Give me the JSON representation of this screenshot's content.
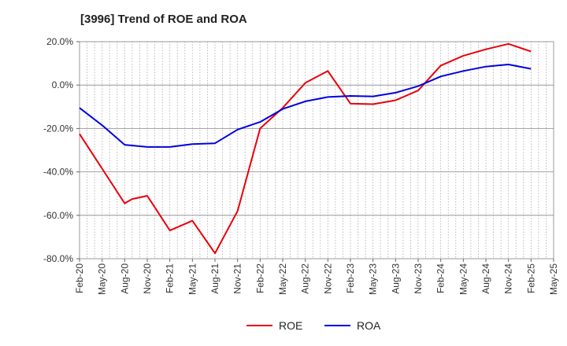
{
  "chart_data": {
    "type": "line",
    "title": "[3996]  Trend of ROE and ROA",
    "xlabel": "",
    "ylabel": "",
    "categories": [
      "Feb-20",
      "Mar-20",
      "Apr-20",
      "May-20",
      "Jun-20",
      "Jul-20",
      "Aug-20",
      "Sep-20",
      "Oct-20",
      "Nov-20",
      "Dec-20",
      "Jan-21",
      "Feb-21",
      "Mar-21",
      "Apr-21",
      "May-21",
      "Jun-21",
      "Jul-21",
      "Aug-21",
      "Sep-21",
      "Oct-21",
      "Nov-21",
      "Dec-21",
      "Jan-22",
      "Feb-22",
      "Mar-22",
      "Apr-22",
      "May-22",
      "Jun-22",
      "Jul-22",
      "Aug-22",
      "Sep-22",
      "Oct-22",
      "Nov-22",
      "Dec-22",
      "Jan-23",
      "Feb-23",
      "Mar-23",
      "Apr-23",
      "May-23",
      "Jun-23",
      "Jul-23",
      "Aug-23",
      "Sep-23",
      "Oct-23",
      "Nov-23",
      "Dec-23",
      "Jan-24",
      "Feb-24",
      "Mar-24",
      "Apr-24",
      "May-24",
      "Jun-24",
      "Jul-24",
      "Aug-24",
      "Sep-24",
      "Oct-24",
      "Nov-24",
      "Dec-24",
      "Jan-25",
      "Feb-25",
      "Mar-25",
      "Apr-25",
      "May-25"
    ],
    "x_tick_labels": [
      "Feb-20",
      "May-20",
      "Aug-20",
      "Nov-20",
      "Feb-21",
      "May-21",
      "Aug-21",
      "Nov-21",
      "Feb-22",
      "May-22",
      "Aug-22",
      "Nov-22",
      "Feb-23",
      "May-23",
      "Aug-23",
      "Nov-23",
      "Feb-24",
      "May-24",
      "Aug-24",
      "Nov-24",
      "Feb-25",
      "May-25"
    ],
    "y_tick_labels": [
      "20.0%",
      "0.0%",
      "-20.0%",
      "-40.0%",
      "-60.0%",
      "-80.0%"
    ],
    "ylim": [
      -80,
      20
    ],
    "grid": true,
    "legend_position": "bottom",
    "series": [
      {
        "name": "ROE",
        "color": "#e8000b",
        "points": [
          {
            "x": "Feb-20",
            "y": -22.5
          },
          {
            "x": "May-20",
            "y": -38.5
          },
          {
            "x": "Aug-20",
            "y": -54.5
          },
          {
            "x": "Sep-20",
            "y": -52.5
          },
          {
            "x": "Nov-20",
            "y": -51.0
          },
          {
            "x": "Feb-21",
            "y": -67.0
          },
          {
            "x": "May-21",
            "y": -62.5
          },
          {
            "x": "Aug-21",
            "y": -77.5
          },
          {
            "x": "Nov-21",
            "y": -58.0
          },
          {
            "x": "Feb-22",
            "y": -20.0
          },
          {
            "x": "May-22",
            "y": -10.5
          },
          {
            "x": "Aug-22",
            "y": 1.0
          },
          {
            "x": "Nov-22",
            "y": 6.5
          },
          {
            "x": "Feb-23",
            "y": -8.5
          },
          {
            "x": "May-23",
            "y": -8.8
          },
          {
            "x": "Aug-23",
            "y": -7.0
          },
          {
            "x": "Nov-23",
            "y": -2.5
          },
          {
            "x": "Feb-24",
            "y": 9.0
          },
          {
            "x": "May-24",
            "y": 13.5
          },
          {
            "x": "Aug-24",
            "y": 16.5
          },
          {
            "x": "Nov-24",
            "y": 19.0
          },
          {
            "x": "Feb-25",
            "y": 15.5
          }
        ]
      },
      {
        "name": "ROA",
        "color": "#0000e0",
        "points": [
          {
            "x": "Feb-20",
            "y": -10.5
          },
          {
            "x": "May-20",
            "y": -18.5
          },
          {
            "x": "Aug-20",
            "y": -27.5
          },
          {
            "x": "Nov-20",
            "y": -28.5
          },
          {
            "x": "Feb-21",
            "y": -28.5
          },
          {
            "x": "May-21",
            "y": -27.2
          },
          {
            "x": "Aug-21",
            "y": -26.8
          },
          {
            "x": "Nov-21",
            "y": -20.5
          },
          {
            "x": "Feb-22",
            "y": -17.0
          },
          {
            "x": "May-22",
            "y": -11.0
          },
          {
            "x": "Aug-22",
            "y": -7.5
          },
          {
            "x": "Nov-22",
            "y": -5.5
          },
          {
            "x": "Feb-23",
            "y": -5.0
          },
          {
            "x": "May-23",
            "y": -5.2
          },
          {
            "x": "Aug-23",
            "y": -3.5
          },
          {
            "x": "Nov-23",
            "y": -0.5
          },
          {
            "x": "Feb-24",
            "y": 4.0
          },
          {
            "x": "May-24",
            "y": 6.5
          },
          {
            "x": "Aug-24",
            "y": 8.5
          },
          {
            "x": "Nov-24",
            "y": 9.5
          },
          {
            "x": "Feb-25",
            "y": 7.5
          }
        ]
      }
    ]
  }
}
